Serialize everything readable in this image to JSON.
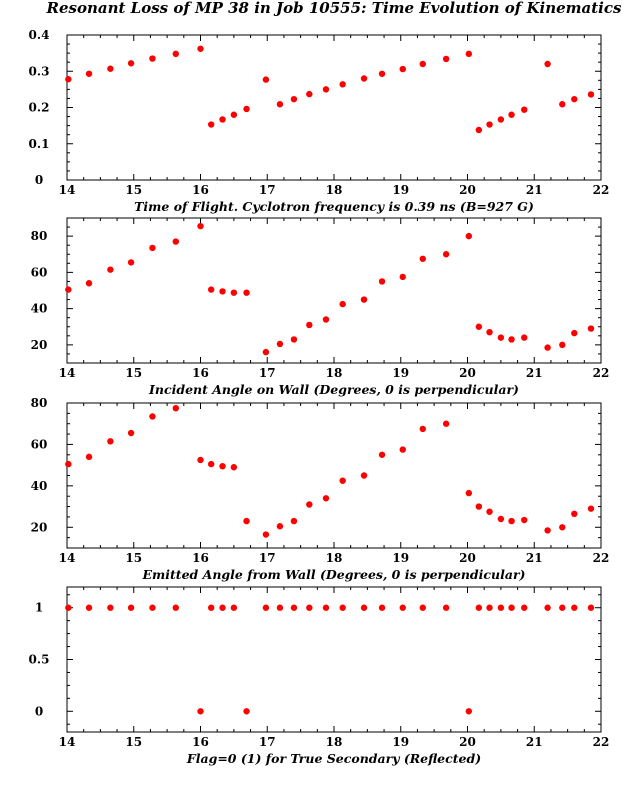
{
  "figure": {
    "title": "Resonant Loss of MP 38 in Job 10555: Time Evolution of Kinematics"
  },
  "chart_data": [
    {
      "type": "scatter",
      "xlabel": "Time of Flight. Cyclotron frequency is 0.39 ns (B=927 G)",
      "ylabel": "",
      "xlim": [
        14,
        22
      ],
      "ylim": [
        0,
        0.4
      ],
      "xticks": [
        14,
        15,
        16,
        17,
        18,
        19,
        20,
        21,
        22
      ],
      "yticks": [
        0,
        0.1,
        0.2,
        0.3,
        0.4
      ],
      "ytick_labels": [
        "0",
        "0.1",
        "0.2",
        "0.3",
        "0.4"
      ],
      "grid": false,
      "marker_color": "#ff0000",
      "x": [
        14.02,
        14.33,
        14.65,
        14.96,
        15.28,
        15.63,
        16.0,
        16.16,
        16.33,
        16.5,
        16.69,
        16.98,
        17.19,
        17.4,
        17.63,
        17.88,
        18.13,
        18.45,
        18.72,
        19.03,
        19.33,
        19.68,
        20.02,
        20.17,
        20.33,
        20.5,
        20.66,
        20.85,
        21.2,
        21.42,
        21.6,
        21.85
      ],
      "y": [
        0.278,
        0.293,
        0.307,
        0.322,
        0.335,
        0.348,
        0.362,
        0.153,
        0.167,
        0.18,
        0.196,
        0.277,
        0.209,
        0.223,
        0.237,
        0.25,
        0.264,
        0.28,
        0.293,
        0.306,
        0.32,
        0.334,
        0.348,
        0.138,
        0.153,
        0.167,
        0.18,
        0.194,
        0.32,
        0.209,
        0.223,
        0.236
      ]
    },
    {
      "type": "scatter",
      "xlabel": "Incident Angle on Wall (Degrees, 0 is perpendicular)",
      "ylabel": "",
      "xlim": [
        14,
        22
      ],
      "ylim": [
        10,
        90
      ],
      "xticks": [
        14,
        15,
        16,
        17,
        18,
        19,
        20,
        21,
        22
      ],
      "yticks": [
        20,
        40,
        60,
        80
      ],
      "ytick_labels": [
        "20",
        "40",
        "60",
        "80"
      ],
      "grid": false,
      "marker_color": "#ff0000",
      "x": [
        14.02,
        14.33,
        14.65,
        14.96,
        15.28,
        15.63,
        16.0,
        16.16,
        16.33,
        16.5,
        16.69,
        16.98,
        17.19,
        17.4,
        17.63,
        17.88,
        18.13,
        18.45,
        18.72,
        19.03,
        19.33,
        19.68,
        20.02,
        20.17,
        20.33,
        20.5,
        20.66,
        20.85,
        21.2,
        21.42,
        21.6,
        21.85
      ],
      "y": [
        50.5,
        54,
        61.5,
        65.5,
        73.5,
        77,
        85.5,
        50.5,
        49.5,
        48.8,
        48.8,
        16,
        20.5,
        23,
        31,
        34,
        42.5,
        45,
        55,
        57.5,
        67.5,
        70,
        80,
        30,
        27,
        24,
        23,
        24,
        18.5,
        20,
        26.5,
        29
      ]
    },
    {
      "type": "scatter",
      "xlabel": "Emitted Angle from Wall (Degrees, 0 is perpendicular)",
      "ylabel": "",
      "xlim": [
        14,
        22
      ],
      "ylim": [
        10,
        80
      ],
      "xticks": [
        14,
        15,
        16,
        17,
        18,
        19,
        20,
        21,
        22
      ],
      "yticks": [
        20,
        40,
        60,
        80
      ],
      "ytick_labels": [
        "20",
        "40",
        "60",
        "80"
      ],
      "grid": false,
      "marker_color": "#ff0000",
      "x": [
        14.02,
        14.33,
        14.65,
        14.96,
        15.28,
        15.63,
        16.0,
        16.16,
        16.33,
        16.5,
        16.69,
        16.98,
        17.19,
        17.4,
        17.63,
        17.88,
        18.13,
        18.45,
        18.72,
        19.03,
        19.33,
        19.68,
        20.02,
        20.17,
        20.33,
        20.5,
        20.66,
        20.85,
        21.2,
        21.42,
        21.6,
        21.85
      ],
      "y": [
        50.5,
        54,
        61.5,
        65.5,
        73.5,
        77.5,
        52.5,
        50.5,
        49.5,
        49,
        23,
        16.5,
        20.5,
        23,
        31,
        34,
        42.5,
        45,
        55,
        57.5,
        67.5,
        70,
        36.5,
        30,
        27.5,
        24,
        23,
        23.5,
        18.5,
        20,
        26.5,
        29
      ]
    },
    {
      "type": "scatter",
      "xlabel": "Flag=0 (1) for True Secondary (Reflected)",
      "ylabel": "",
      "xlim": [
        14,
        22
      ],
      "ylim": [
        -0.2,
        1.2
      ],
      "xticks": [
        14,
        15,
        16,
        17,
        18,
        19,
        20,
        21,
        22
      ],
      "yticks": [
        0,
        0.5,
        1
      ],
      "ytick_labels": [
        "0",
        "0.5",
        "1"
      ],
      "grid": false,
      "marker_color": "#ff0000",
      "x": [
        14.02,
        14.33,
        14.65,
        14.96,
        15.28,
        15.63,
        16.0,
        16.16,
        16.33,
        16.5,
        16.69,
        16.98,
        17.19,
        17.4,
        17.63,
        17.88,
        18.13,
        18.45,
        18.72,
        19.03,
        19.33,
        19.68,
        20.02,
        20.17,
        20.33,
        20.5,
        20.66,
        20.85,
        21.2,
        21.42,
        21.6,
        21.85
      ],
      "y": [
        1,
        1,
        1,
        1,
        1,
        1,
        0,
        1,
        1,
        1,
        0,
        1,
        1,
        1,
        1,
        1,
        1,
        1,
        1,
        1,
        1,
        1,
        0,
        1,
        1,
        1,
        1,
        1,
        1,
        1,
        1,
        1
      ]
    }
  ]
}
